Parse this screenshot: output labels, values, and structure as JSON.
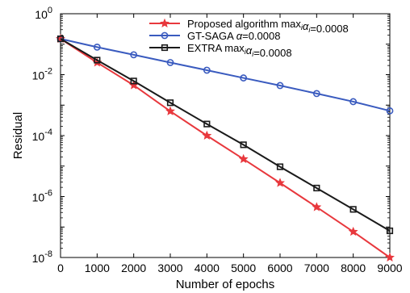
{
  "chart_data": {
    "type": "line",
    "title": "",
    "xlabel": "Number of epochs",
    "ylabel": "Residual",
    "x_scale": "linear",
    "y_scale": "log",
    "xlim": [
      0,
      9000
    ],
    "ylim": [
      1e-08,
      1
    ],
    "grid": false,
    "legend_position": "top-right",
    "x_ticks": [
      "0",
      "1000",
      "2000",
      "3000",
      "4000",
      "5000",
      "6000",
      "7000",
      "8000",
      "9000"
    ],
    "y_ticks": [
      {
        "value": 1,
        "base": "10",
        "exp": "0"
      },
      {
        "value": 0.01,
        "base": "10",
        "exp": "-2"
      },
      {
        "value": 0.0001,
        "base": "10",
        "exp": "-4"
      },
      {
        "value": 1e-06,
        "base": "10",
        "exp": "-6"
      },
      {
        "value": 1e-08,
        "base": "10",
        "exp": "-8"
      }
    ],
    "series": [
      {
        "name_parts": [
          "Proposed algorithm max",
          "i",
          "α",
          "i",
          "=0.0008"
        ],
        "color": "#e8383d",
        "marker": "star",
        "x": [
          0,
          1000,
          2000,
          3000,
          4000,
          5000,
          6000,
          7000,
          8000,
          9000
        ],
        "y": [
          0.15,
          0.025,
          0.0045,
          0.00063,
          0.0001,
          1.7e-05,
          2.8e-06,
          4.5e-07,
          7e-08,
          1e-08
        ]
      },
      {
        "name_parts": [
          "GT-SAGA ",
          "",
          "α",
          "",
          "=0.0008"
        ],
        "color": "#3a5bbf",
        "marker": "circle",
        "x": [
          0,
          1000,
          2000,
          3000,
          4000,
          5000,
          6000,
          7000,
          8000,
          9000
        ],
        "y": [
          0.15,
          0.08,
          0.045,
          0.025,
          0.014,
          0.0078,
          0.0044,
          0.0024,
          0.0013,
          0.00065
        ]
      },
      {
        "name_parts": [
          "EXTRA max",
          "i",
          "α",
          "i",
          "=0.0008"
        ],
        "color": "#1a1a1a",
        "marker": "square",
        "x": [
          0,
          1000,
          2000,
          3000,
          4000,
          5000,
          6000,
          7000,
          8000,
          9000
        ],
        "y": [
          0.15,
          0.03,
          0.0062,
          0.0012,
          0.00024,
          5e-05,
          9.5e-06,
          1.9e-06,
          3.8e-07,
          7.5e-08
        ]
      }
    ]
  }
}
